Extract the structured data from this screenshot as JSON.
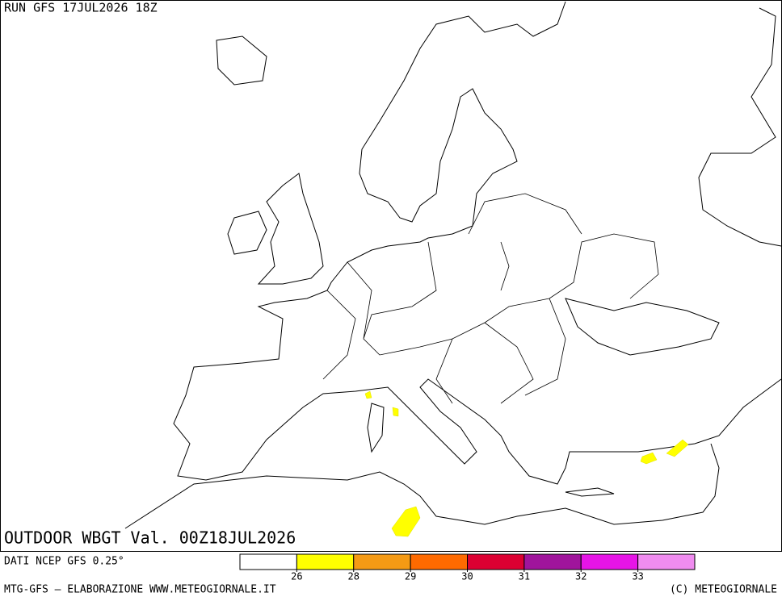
{
  "header": {
    "run": "RUN GFS 17JUL2026 18Z"
  },
  "map": {
    "title": "OUTDOOR WBGT Val. 00Z18JUL2026"
  },
  "legend": {
    "source": "DATI NCEP GFS 0.25°",
    "colors": [
      "#ffffff",
      "#ffff00",
      "#f59a14",
      "#ff6a00",
      "#dc0032",
      "#a0149c",
      "#e614e6",
      "#f08cf0"
    ],
    "ticks": [
      26,
      28,
      29,
      30,
      31,
      32,
      33
    ]
  },
  "footer": {
    "left": "MTG-GFS — ELABORAZIONE WWW.METEOGIORNALE.IT",
    "right": "(C) METEOGIORNALE"
  }
}
